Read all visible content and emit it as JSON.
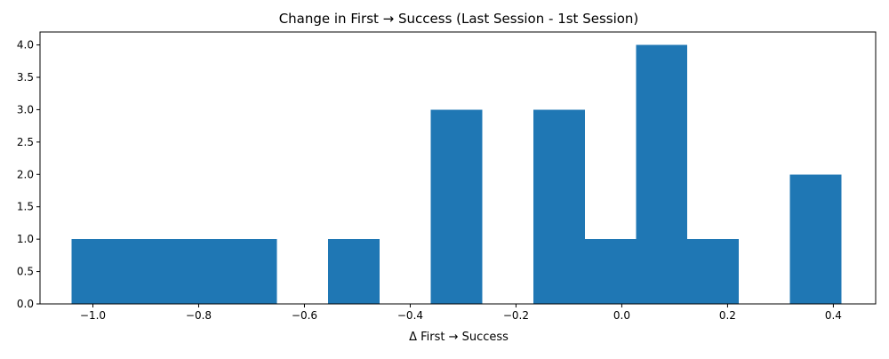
{
  "chart_data": {
    "type": "bar",
    "subtype": "histogram",
    "title": "Change in First → Success (Last Session - 1st Session)",
    "xlabel": "Δ First → Success",
    "ylabel": "",
    "xlim": [
      -1.1,
      0.48
    ],
    "ylim": [
      0,
      4.2
    ],
    "x_ticks": [
      {
        "value": -1.0,
        "label": "−1.0"
      },
      {
        "value": -0.8,
        "label": "−0.8"
      },
      {
        "value": -0.6,
        "label": "−0.6"
      },
      {
        "value": -0.4,
        "label": "−0.4"
      },
      {
        "value": -0.2,
        "label": "−0.2"
      },
      {
        "value": 0.0,
        "label": "0.0"
      },
      {
        "value": 0.2,
        "label": "0.2"
      },
      {
        "value": 0.4,
        "label": "0.4"
      }
    ],
    "y_ticks": [
      {
        "value": 0.0,
        "label": "0.0"
      },
      {
        "value": 0.5,
        "label": "0.5"
      },
      {
        "value": 1.0,
        "label": "1.0"
      },
      {
        "value": 1.5,
        "label": "1.5"
      },
      {
        "value": 2.0,
        "label": "2.0"
      },
      {
        "value": 2.5,
        "label": "2.5"
      },
      {
        "value": 3.0,
        "label": "3.0"
      },
      {
        "value": 3.5,
        "label": "3.5"
      },
      {
        "value": 4.0,
        "label": "4.0"
      }
    ],
    "bin_edges": [
      -1.04,
      -0.943,
      -0.846,
      -0.749,
      -0.652,
      -0.555,
      -0.458,
      -0.361,
      -0.264,
      -0.167,
      -0.07,
      0.027,
      0.124,
      0.221,
      0.318,
      0.415
    ],
    "values": [
      1,
      1,
      1,
      1,
      0,
      1,
      0,
      3,
      0,
      3,
      1,
      4,
      1,
      0,
      2
    ],
    "bar_color": "#1f77b4",
    "grid": false,
    "legend": "none"
  }
}
